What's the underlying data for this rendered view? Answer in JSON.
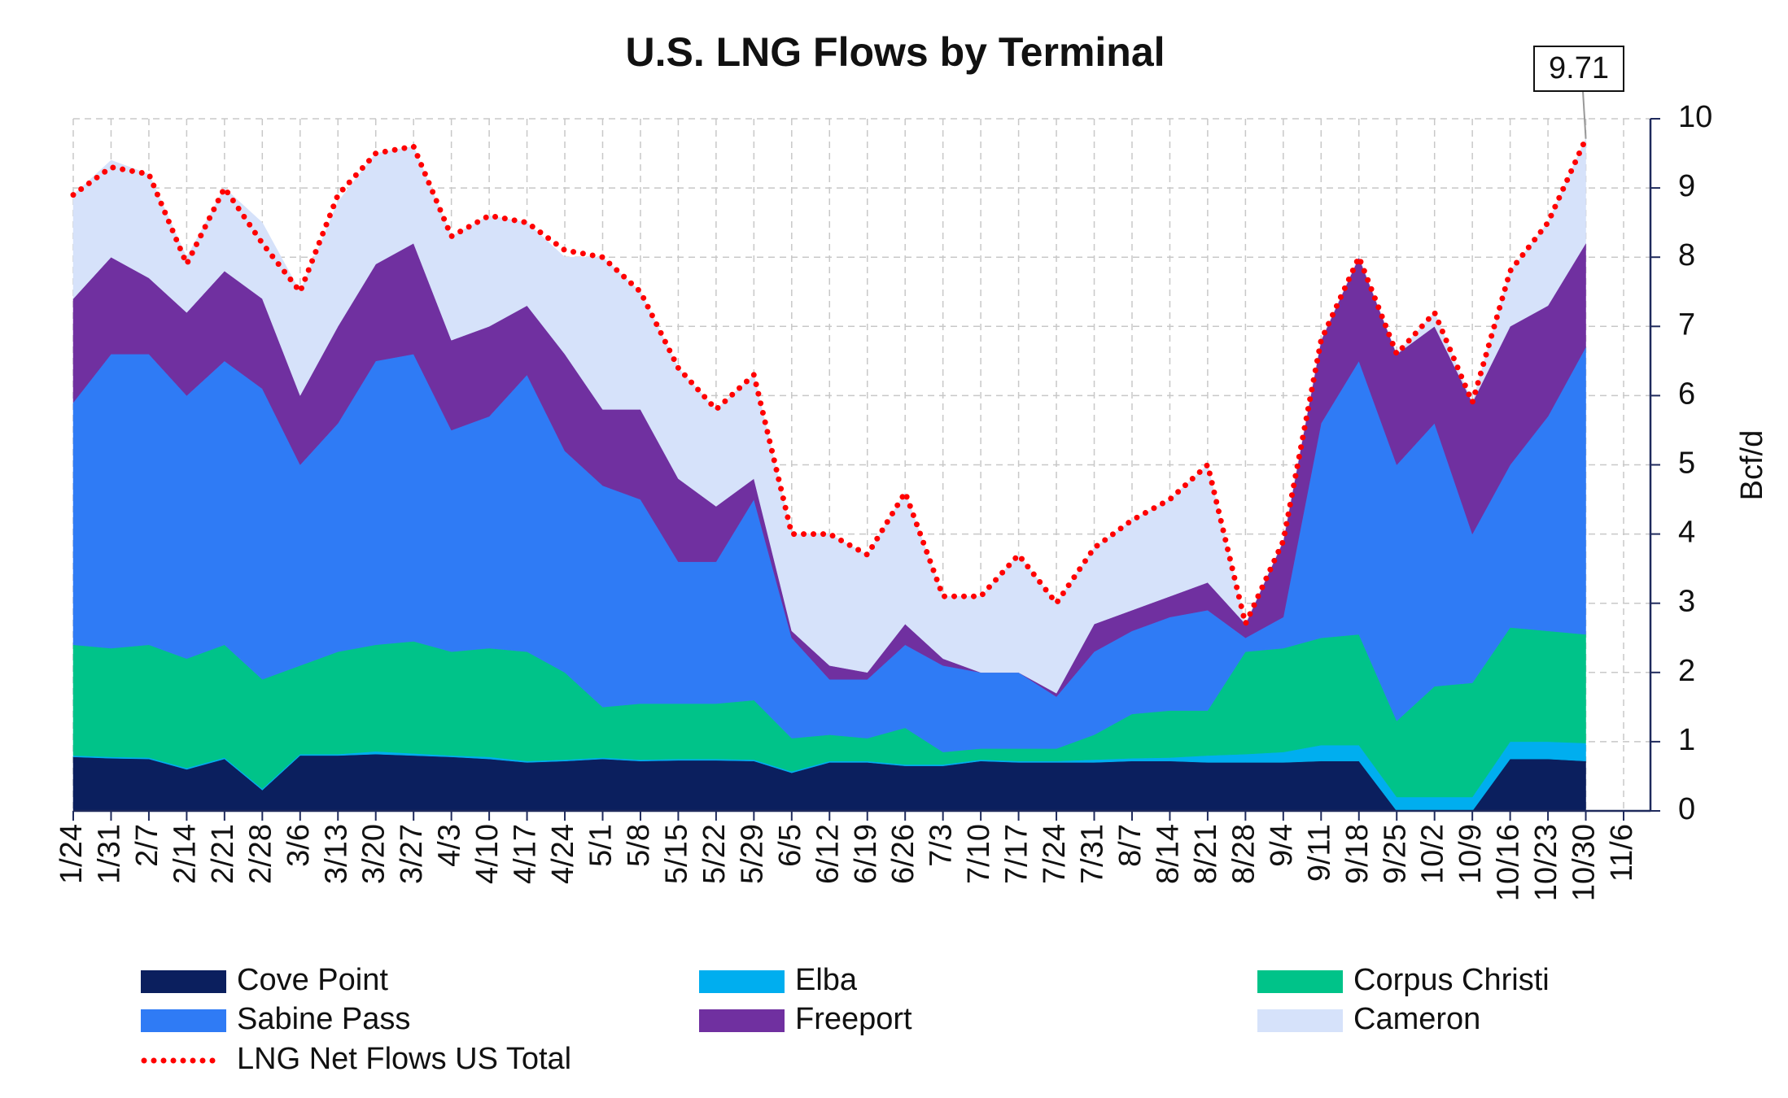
{
  "chart_data": {
    "type": "stacked_area",
    "title": "U.S. LNG Flows by Terminal",
    "y_label": "Bcf/d",
    "annotation": "9.71",
    "categories": [
      "1/24",
      "1/31",
      "2/7",
      "2/14",
      "2/21",
      "2/28",
      "3/6",
      "3/13",
      "3/20",
      "3/27",
      "4/3",
      "4/10",
      "4/17",
      "4/24",
      "5/1",
      "5/8",
      "5/15",
      "5/22",
      "5/29",
      "6/5",
      "6/12",
      "6/19",
      "6/26",
      "7/3",
      "7/10",
      "7/17",
      "7/24",
      "7/31",
      "8/7",
      "8/14",
      "8/21",
      "8/28",
      "9/4",
      "9/11",
      "9/18",
      "9/25",
      "10/2",
      "10/9",
      "10/16",
      "10/23",
      "10/30",
      "11/6"
    ],
    "ylim": [
      0,
      10
    ],
    "yticks": [
      0,
      1,
      2,
      3,
      4,
      5,
      6,
      7,
      8,
      9,
      10
    ],
    "grid": true,
    "series": [
      {
        "name": "Cove Point",
        "color": "#0b1f5e",
        "values": [
          0.78,
          0.76,
          0.75,
          0.6,
          0.75,
          0.3,
          0.8,
          0.8,
          0.82,
          0.8,
          0.78,
          0.75,
          0.7,
          0.72,
          0.75,
          0.72,
          0.73,
          0.73,
          0.72,
          0.55,
          0.7,
          0.7,
          0.65,
          0.65,
          0.72,
          0.7,
          0.7,
          0.7,
          0.72,
          0.72,
          0.7,
          0.7,
          0.7,
          0.72,
          0.72,
          0,
          0,
          0,
          0.75,
          0.75,
          0.72,
          null
        ]
      },
      {
        "name": "Elba",
        "color": "#00aeef",
        "values": [
          0.02,
          0.02,
          0.02,
          0.02,
          0.02,
          0.02,
          0.02,
          0.02,
          0.04,
          0.03,
          0.02,
          0.03,
          0.02,
          0.02,
          0.02,
          0.02,
          0.02,
          0.02,
          0.02,
          0.02,
          0.02,
          0.02,
          0.02,
          0.02,
          0.02,
          0.02,
          0.02,
          0.04,
          0.04,
          0.05,
          0.1,
          0.12,
          0.15,
          0.23,
          0.23,
          0.2,
          0.2,
          0.2,
          0.25,
          0.25,
          0.26,
          null
        ]
      },
      {
        "name": "Corpus Christi",
        "color": "#00c389",
        "values": [
          1.6,
          1.57,
          1.63,
          1.58,
          1.63,
          1.58,
          1.28,
          1.48,
          1.54,
          1.62,
          1.5,
          1.57,
          1.58,
          1.26,
          0.73,
          0.81,
          0.8,
          0.8,
          0.86,
          0.48,
          0.38,
          0.33,
          0.53,
          0.18,
          0.16,
          0.18,
          0.18,
          0.36,
          0.64,
          0.68,
          0.65,
          1.48,
          1.5,
          1.55,
          1.6,
          1.1,
          1.6,
          1.65,
          1.65,
          1.6,
          1.57,
          null
        ]
      },
      {
        "name": "Sabine Pass",
        "color": "#2f7bf5",
        "values": [
          3.5,
          4.25,
          4.2,
          3.8,
          4.1,
          4.2,
          2.9,
          3.3,
          4.1,
          4.15,
          3.2,
          3.35,
          4.0,
          3.2,
          3.2,
          2.95,
          2.05,
          2.05,
          2.9,
          1.45,
          0.8,
          0.85,
          1.2,
          1.25,
          1.1,
          1.1,
          0.75,
          1.2,
          1.2,
          1.35,
          1.45,
          0.2,
          0.45,
          3.1,
          3.95,
          3.7,
          3.8,
          2.15,
          2.35,
          3.1,
          4.15,
          null
        ]
      },
      {
        "name": "Freeport",
        "color": "#7030a0",
        "values": [
          1.5,
          1.4,
          1.1,
          1.2,
          1.3,
          1.3,
          1.0,
          1.4,
          1.4,
          1.6,
          1.3,
          1.3,
          1.0,
          1.4,
          1.1,
          1.3,
          1.2,
          0.8,
          0.3,
          0.1,
          0.2,
          0.1,
          0.3,
          0.1,
          0,
          0,
          0.05,
          0.4,
          0.3,
          0.3,
          0.4,
          0.2,
          1.1,
          1.2,
          1.5,
          1.6,
          1.4,
          1.9,
          2.0,
          1.6,
          1.5,
          null
        ]
      },
      {
        "name": "Cameron",
        "color": "#d6e2fa",
        "values": [
          1.5,
          1.4,
          1.5,
          0.8,
          1.2,
          1.1,
          1.5,
          1.8,
          1.6,
          1.4,
          1.5,
          1.6,
          1.2,
          1.4,
          2.2,
          1.7,
          1.6,
          1.4,
          1.5,
          1.4,
          1.9,
          1.7,
          1.9,
          0.9,
          1.1,
          1.7,
          1.3,
          1.1,
          1.3,
          1.4,
          1.7,
          0,
          0,
          0,
          0,
          0,
          0.2,
          0,
          0.8,
          1.2,
          1.51,
          null
        ]
      },
      {
        "name": "LNG Net Flows US Total",
        "color": "#ff0000",
        "kind": "dotted_line",
        "values": [
          8.9,
          9.3,
          9.2,
          7.9,
          9.0,
          8.2,
          7.5,
          8.9,
          9.5,
          9.6,
          8.3,
          8.6,
          8.5,
          8.1,
          8.0,
          7.5,
          6.4,
          5.8,
          6.3,
          4.0,
          4.0,
          3.7,
          4.6,
          3.1,
          3.1,
          3.7,
          3.0,
          3.8,
          4.2,
          4.5,
          5.0,
          2.7,
          3.9,
          6.8,
          8.0,
          6.6,
          7.2,
          5.9,
          7.8,
          8.5,
          9.71,
          null
        ]
      }
    ]
  }
}
